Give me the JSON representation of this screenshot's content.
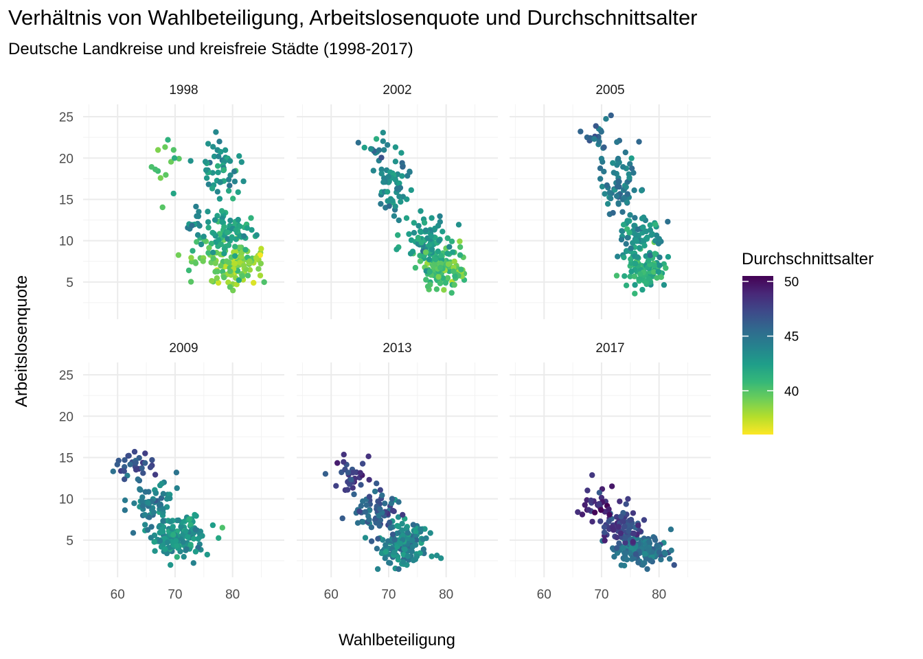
{
  "chart_data": {
    "type": "scatter",
    "title": "Verhältnis von Wahlbeteiligung, Arbeitslosenquote und Durchschnittsalter",
    "subtitle": "Deutsche Landkreise und kreisfreie Städte (1998-2017)",
    "xlabel": "Wahlbeteiligung",
    "ylabel": "Arbeitslosenquote",
    "xlim": [
      54,
      89
    ],
    "ylim": [
      0.5,
      26.5
    ],
    "x_ticks": [
      60,
      70,
      80
    ],
    "y_ticks": [
      5,
      10,
      15,
      20,
      25
    ],
    "x_tick_labels": [
      "60",
      "70",
      "80"
    ],
    "y_tick_labels": [
      "5",
      "10",
      "15",
      "20",
      "25"
    ],
    "grid": true,
    "facets": [
      "1998",
      "2002",
      "2005",
      "2009",
      "2013",
      "2017"
    ],
    "facet_layout": "2 rows x 3 columns",
    "color_scale": {
      "name": "Durchschnittsalter",
      "palette": "viridis (reversed)",
      "range": [
        36,
        50.5
      ],
      "ticks": [
        40,
        45,
        50
      ],
      "tick_labels": [
        "40",
        "45",
        "50"
      ],
      "colors": [
        "#fde725",
        "#b5de2b",
        "#6ece58",
        "#35b779",
        "#1f9e89",
        "#26828e",
        "#31688e",
        "#3e4989",
        "#482878",
        "#440154"
      ]
    },
    "legend_position": "right",
    "panels": [
      {
        "facet": "1998",
        "clusters": [
          {
            "x": 80.5,
            "y": 7.0,
            "sx": 2.5,
            "sy": 1.6,
            "n": 110,
            "age": 39.0
          },
          {
            "x": 79.0,
            "y": 11.0,
            "sx": 2.8,
            "sy": 1.8,
            "n": 70,
            "age": 42.0
          },
          {
            "x": 77.5,
            "y": 18.5,
            "sx": 2.6,
            "sy": 2.3,
            "n": 55,
            "age": 43.0
          },
          {
            "x": 69.0,
            "y": 18.5,
            "sx": 2.0,
            "sy": 2.6,
            "n": 14,
            "age": 39.8
          },
          {
            "x": 73.5,
            "y": 7.5,
            "sx": 3.0,
            "sy": 2.0,
            "n": 18,
            "age": 39.5
          },
          {
            "x": 74.0,
            "y": 11.5,
            "sx": 2.0,
            "sy": 2.2,
            "n": 18,
            "age": 43.0
          }
        ]
      },
      {
        "facet": "2002",
        "clusters": [
          {
            "x": 79.5,
            "y": 6.5,
            "sx": 2.8,
            "sy": 1.6,
            "n": 120,
            "age": 40.2
          },
          {
            "x": 77.0,
            "y": 10.0,
            "sx": 2.6,
            "sy": 1.8,
            "n": 80,
            "age": 42.5
          },
          {
            "x": 71.0,
            "y": 17.0,
            "sx": 2.4,
            "sy": 2.5,
            "n": 55,
            "age": 43.5
          },
          {
            "x": 67.5,
            "y": 21.0,
            "sx": 1.6,
            "sy": 1.0,
            "n": 15,
            "age": 43.8
          }
        ]
      },
      {
        "facet": "2005",
        "clusters": [
          {
            "x": 77.5,
            "y": 6.5,
            "sx": 2.4,
            "sy": 1.4,
            "n": 95,
            "age": 41.3
          },
          {
            "x": 76.5,
            "y": 10.5,
            "sx": 2.6,
            "sy": 1.8,
            "n": 80,
            "age": 43.2
          },
          {
            "x": 73.0,
            "y": 17.0,
            "sx": 2.4,
            "sy": 2.6,
            "n": 65,
            "age": 44.3
          },
          {
            "x": 69.5,
            "y": 22.5,
            "sx": 1.8,
            "sy": 1.5,
            "n": 18,
            "age": 45.3
          }
        ]
      },
      {
        "facet": "2009",
        "clusters": [
          {
            "x": 71.0,
            "y": 5.5,
            "sx": 3.0,
            "sy": 1.7,
            "n": 150,
            "age": 43.0
          },
          {
            "x": 66.5,
            "y": 9.5,
            "sx": 2.6,
            "sy": 2.0,
            "n": 70,
            "age": 44.2
          },
          {
            "x": 62.5,
            "y": 14.0,
            "sx": 2.4,
            "sy": 1.6,
            "n": 30,
            "age": 46.5
          }
        ]
      },
      {
        "facet": "2013",
        "clusters": [
          {
            "x": 72.5,
            "y": 4.5,
            "sx": 2.8,
            "sy": 1.6,
            "n": 150,
            "age": 43.8
          },
          {
            "x": 68.0,
            "y": 8.5,
            "sx": 2.8,
            "sy": 2.0,
            "n": 70,
            "age": 46.0
          },
          {
            "x": 63.5,
            "y": 12.5,
            "sx": 2.2,
            "sy": 1.5,
            "n": 30,
            "age": 47.8
          }
        ]
      },
      {
        "facet": "2017",
        "clusters": [
          {
            "x": 77.0,
            "y": 3.8,
            "sx": 3.0,
            "sy": 1.3,
            "n": 150,
            "age": 44.8
          },
          {
            "x": 73.5,
            "y": 6.5,
            "sx": 2.5,
            "sy": 1.8,
            "n": 70,
            "age": 47.5
          },
          {
            "x": 69.0,
            "y": 9.5,
            "sx": 2.0,
            "sy": 1.8,
            "n": 30,
            "age": 48.8
          }
        ]
      }
    ]
  }
}
